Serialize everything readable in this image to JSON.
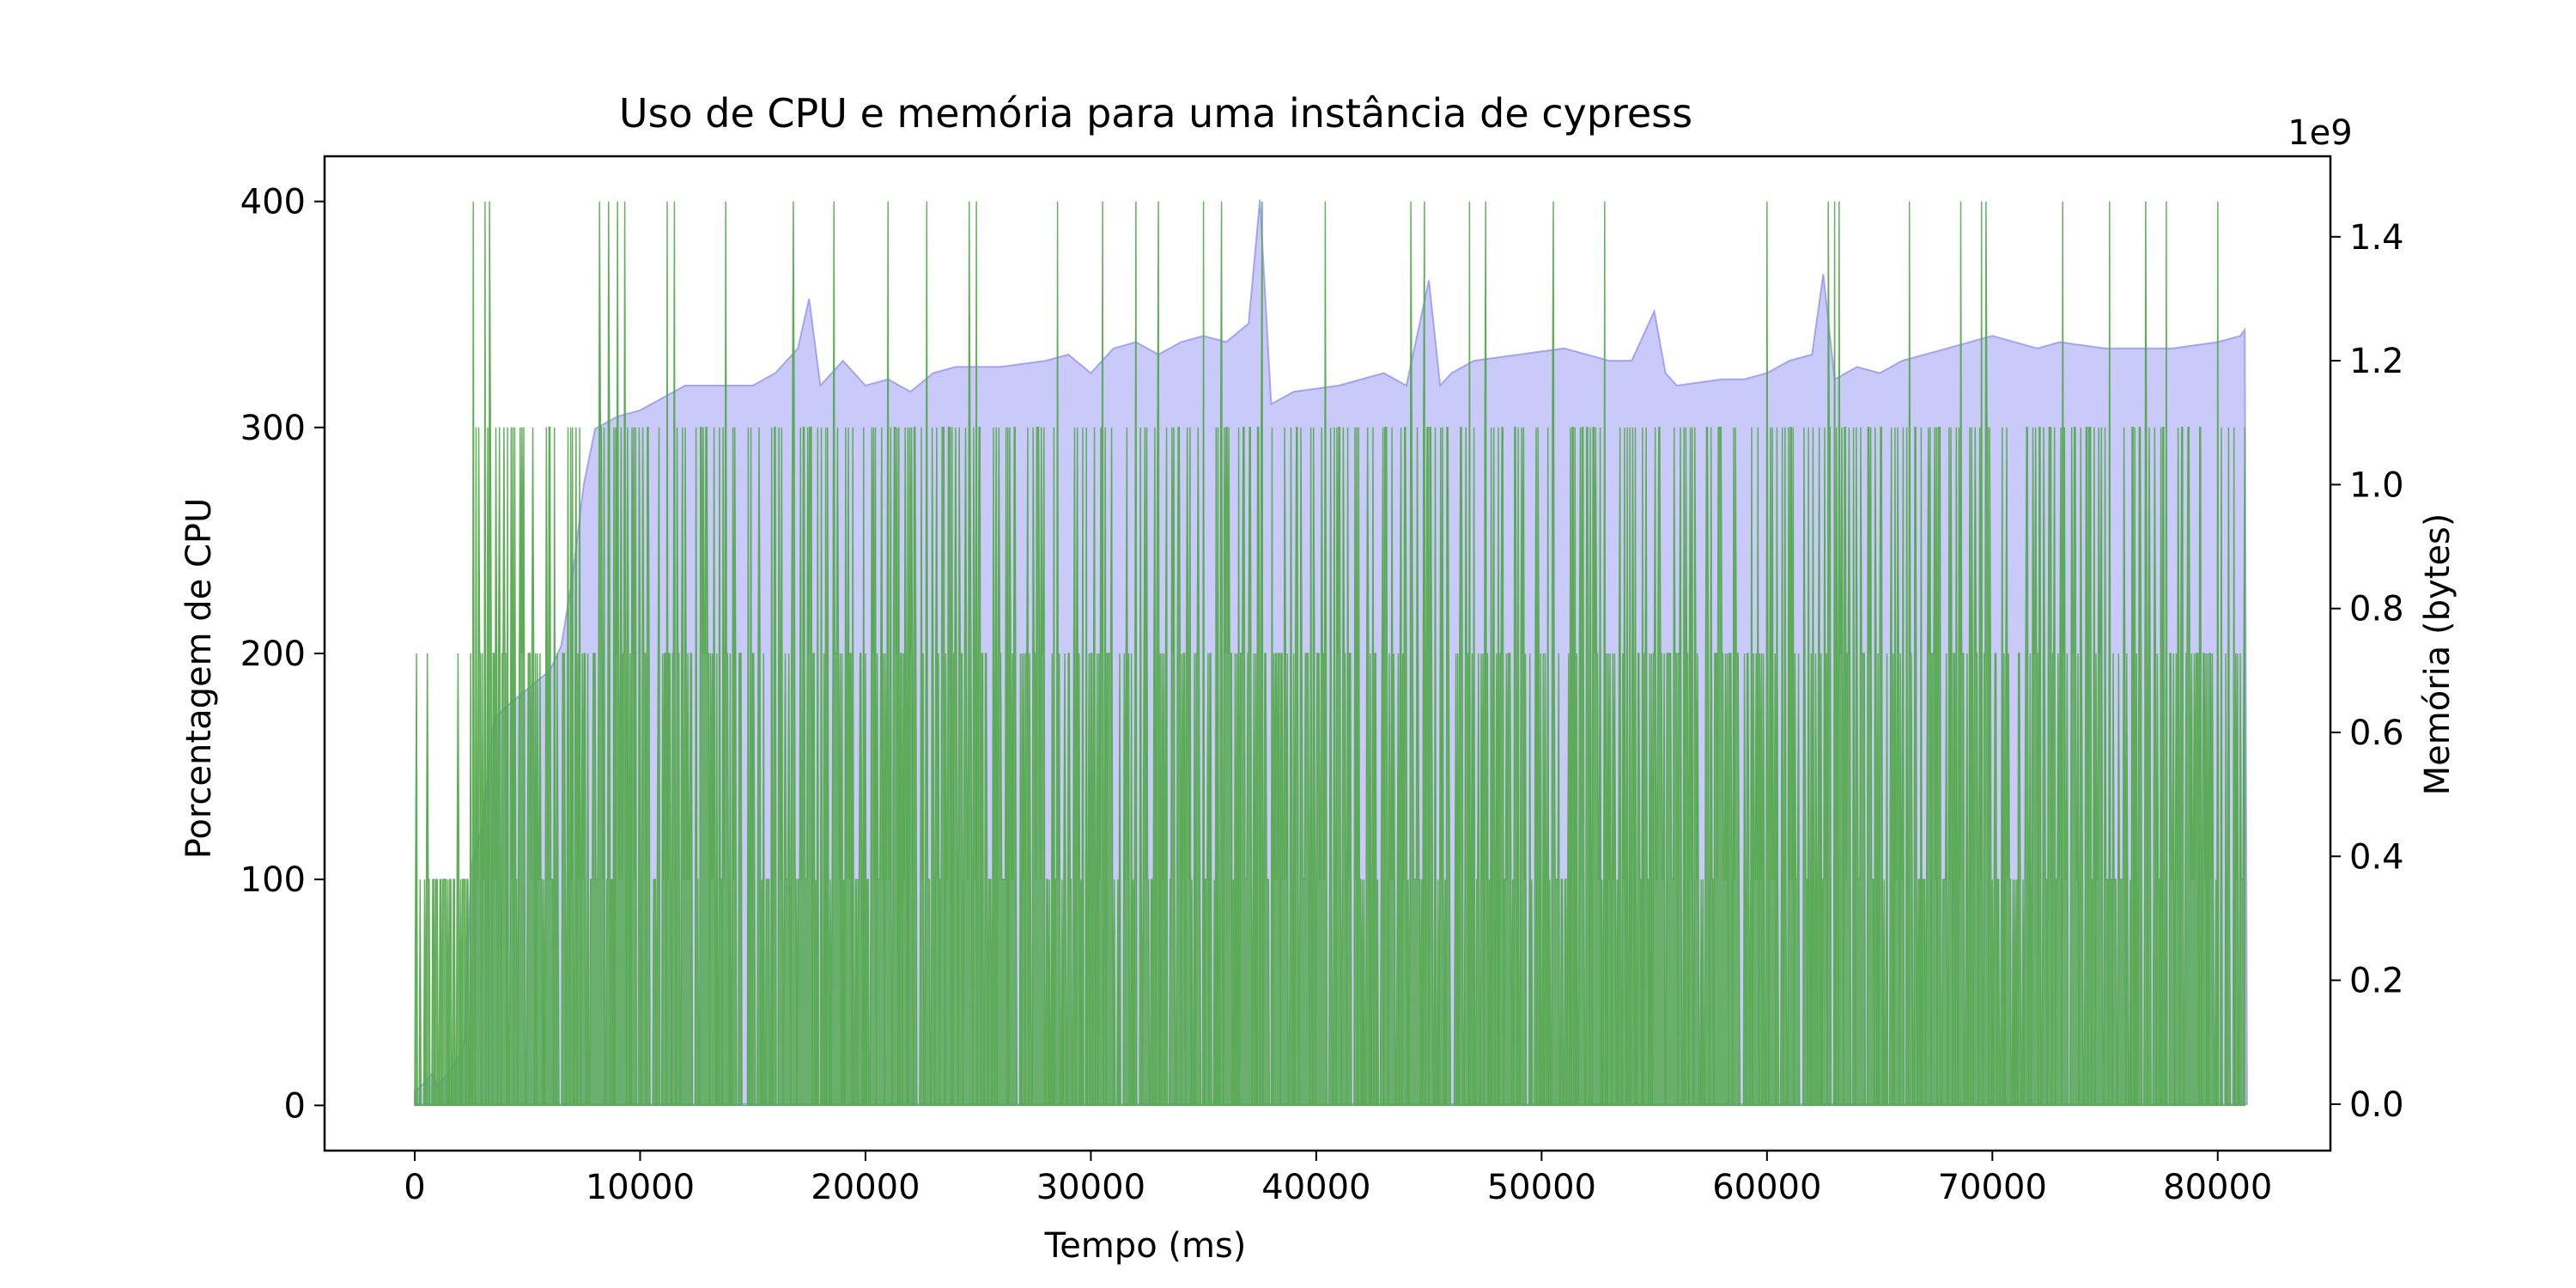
{
  "chart_data": {
    "type": "area",
    "title": "Uso de CPU e memória para uma instância de cypress",
    "xlabel": "Tempo (ms)",
    "ylabel": "Porcentagem de CPU",
    "ylabel_right": "Memória (bytes)",
    "right_axis_offset_text": "1e9",
    "xlim": [
      -4000,
      85000
    ],
    "ylim_left": [
      -20,
      420
    ],
    "ylim_right": [
      -0.075,
      1.53
    ],
    "x_ticks": [
      0,
      10000,
      20000,
      30000,
      40000,
      50000,
      60000,
      70000,
      80000
    ],
    "y_ticks_left": [
      0,
      100,
      200,
      300,
      400
    ],
    "y_ticks_right": [
      "0.0",
      "0.2",
      "0.4",
      "0.6",
      "0.8",
      "1.0",
      "1.2",
      "1.4"
    ],
    "grid": false,
    "legend": "none",
    "series": [
      {
        "axis": "right",
        "color": "#7a7af2",
        "x": [
          0,
          300,
          800,
          1000,
          1500,
          2000,
          2200,
          2500,
          3000,
          3500,
          4000,
          5000,
          6000,
          6500,
          7000,
          7500,
          8000,
          9000,
          10000,
          11000,
          12000,
          13000,
          15000,
          16000,
          17000,
          17500,
          18000,
          18500,
          19000,
          20000,
          21000,
          22000,
          23000,
          24000,
          26000,
          28000,
          29000,
          30000,
          31000,
          32000,
          33000,
          34000,
          35000,
          36000,
          37000,
          37500,
          38000,
          39000,
          41000,
          43000,
          44000,
          45000,
          45500,
          46000,
          47000,
          49000,
          51000,
          53000,
          54000,
          55000,
          55500,
          56000,
          58000,
          59000,
          60000,
          61000,
          62000,
          62500,
          63000,
          64000,
          65000,
          66000,
          68000,
          69000,
          70000,
          72000,
          73000,
          75000,
          78000,
          80000,
          81000,
          81200,
          81300
        ],
        "y": [
          0.02,
          0.03,
          0.05,
          0.03,
          0.05,
          0.08,
          0.1,
          0.38,
          0.45,
          0.62,
          0.64,
          0.67,
          0.7,
          0.74,
          0.85,
          1.0,
          1.09,
          1.11,
          1.12,
          1.14,
          1.16,
          1.16,
          1.16,
          1.18,
          1.22,
          1.3,
          1.16,
          1.18,
          1.2,
          1.16,
          1.17,
          1.15,
          1.18,
          1.19,
          1.19,
          1.2,
          1.21,
          1.18,
          1.22,
          1.23,
          1.21,
          1.23,
          1.24,
          1.23,
          1.26,
          1.46,
          1.13,
          1.15,
          1.16,
          1.18,
          1.16,
          1.33,
          1.16,
          1.18,
          1.2,
          1.21,
          1.22,
          1.2,
          1.2,
          1.28,
          1.18,
          1.16,
          1.17,
          1.17,
          1.18,
          1.2,
          1.21,
          1.34,
          1.17,
          1.19,
          1.18,
          1.2,
          1.22,
          1.23,
          1.24,
          1.22,
          1.23,
          1.22,
          1.22,
          1.23,
          1.24,
          1.25,
          0.0
        ]
      },
      {
        "axis": "left",
        "color": "#55a84f",
        "x_start": 0,
        "x_end": 81200,
        "y_values": [
          0,
          100,
          200,
          300,
          400
        ],
        "peaks_x": [
          2600,
          3100,
          3300,
          8200,
          8600,
          9000,
          9300,
          11200,
          11500,
          13800,
          16800,
          18600,
          21000,
          22700,
          24600,
          24900,
          28500,
          30500,
          32000,
          33000,
          35000,
          35800,
          37600,
          40400,
          44200,
          44800,
          46800,
          47500,
          50500,
          52800,
          60000,
          62700,
          63000,
          63200,
          66300,
          68600,
          69500,
          69700,
          73100,
          75200,
          76800,
          77700,
          80000
        ]
      }
    ]
  }
}
